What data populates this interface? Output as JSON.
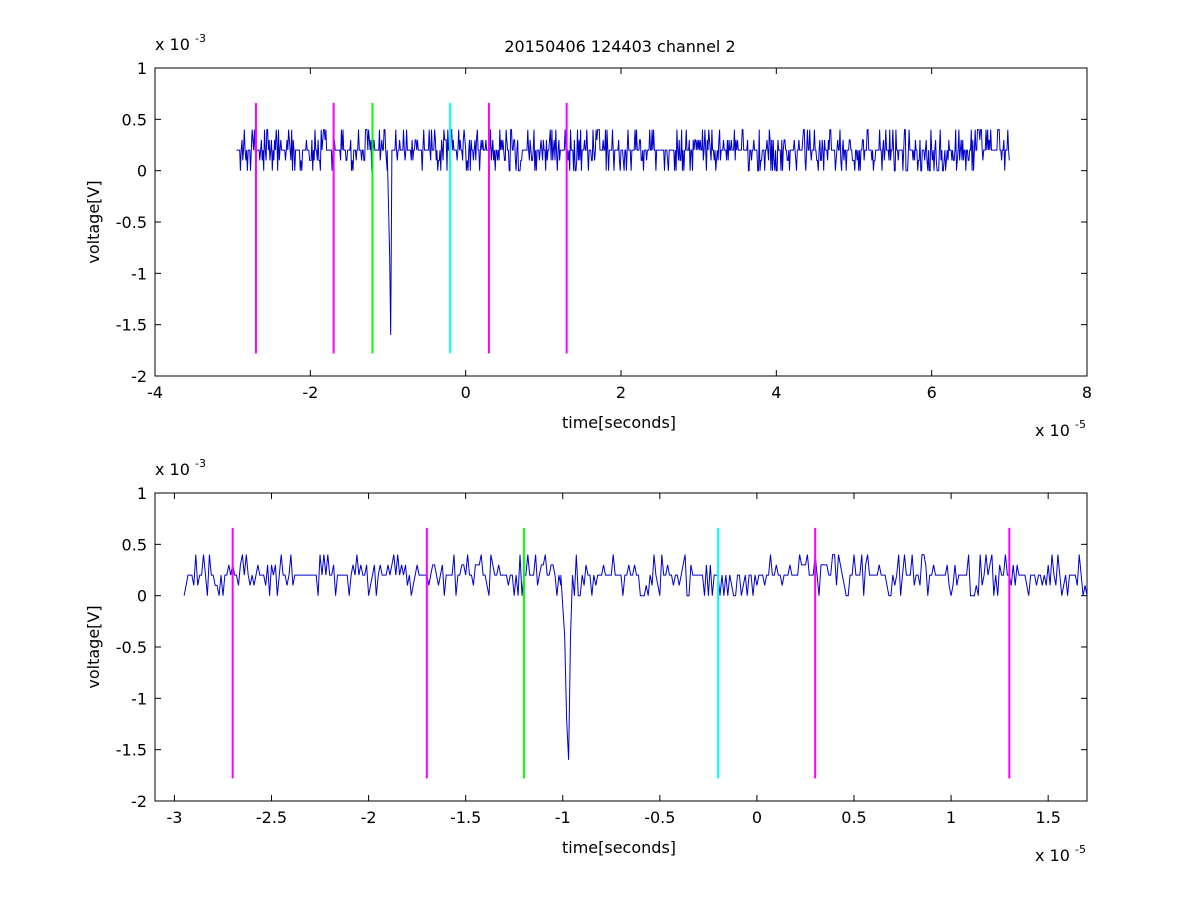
{
  "figure_title": "20150406 124403 channel 2",
  "chart_data": [
    {
      "type": "line",
      "title": "20150406 124403 channel 2",
      "xlabel": "time[seconds]",
      "ylabel": "voltage[V]",
      "x_exponent": "x 10",
      "x_exponent_power": "-5",
      "y_exponent": "x 10",
      "y_exponent_power": "-3",
      "xlim": [
        -4e-05,
        8e-05
      ],
      "ylim": [
        -0.002,
        0.001
      ],
      "xticks": [
        -4e-05,
        -2e-05,
        0,
        2e-05,
        4e-05,
        6e-05,
        8e-05
      ],
      "xtick_labels": [
        "-4",
        "-2",
        "0",
        "2",
        "4",
        "6",
        "8"
      ],
      "yticks": [
        -0.002,
        -0.0015,
        -0.001,
        -0.0005,
        0,
        0.0005,
        0.001
      ],
      "ytick_labels": [
        "-2",
        "-1.5",
        "-1",
        "-0.5",
        "0",
        "0.5",
        "1"
      ],
      "grid": false,
      "series": [
        {
          "color": "#0000cc",
          "style": "noise",
          "x_range": [
            -2.95e-05,
            7e-05
          ],
          "dt": 1e-07,
          "baseline": 0.0002,
          "levels": [
            0,
            0.0001,
            0.0002,
            0.0003,
            0.0004
          ],
          "spike": {
            "x": [
              -1.01e-05,
              -9.8e-06,
              -9.65e-06,
              -9.5e-06
            ],
            "y": [
              0.0002,
              -0.0008,
              -0.0016,
              0.0002
            ]
          }
        }
      ],
      "markers": [
        {
          "x": -2.7e-05,
          "color": "#ff00ff",
          "ymin": -0.00178,
          "ymax": 0.00066
        },
        {
          "x": -1.7e-05,
          "color": "#ff00ff",
          "ymin": -0.00178,
          "ymax": 0.00066
        },
        {
          "x": -1.2e-05,
          "color": "#00ff00",
          "ymin": -0.00178,
          "ymax": 0.00066
        },
        {
          "x": -2e-06,
          "color": "#00ffff",
          "ymin": -0.00178,
          "ymax": 0.00066
        },
        {
          "x": 3e-06,
          "color": "#ff00ff",
          "ymin": -0.00178,
          "ymax": 0.00066
        },
        {
          "x": 1.3e-05,
          "color": "#ff00ff",
          "ymin": -0.00178,
          "ymax": 0.00066
        }
      ]
    },
    {
      "type": "line",
      "title": "",
      "xlabel": "time[seconds]",
      "ylabel": "voltage[V]",
      "x_exponent": "x 10",
      "x_exponent_power": "-5",
      "y_exponent": "x 10",
      "y_exponent_power": "-3",
      "xlim": [
        -3.1e-05,
        1.7e-05
      ],
      "ylim": [
        -0.002,
        0.001
      ],
      "xticks": [
        -3e-05,
        -2.5e-05,
        -2e-05,
        -1.5e-05,
        -1e-05,
        -5e-06,
        0,
        5e-06,
        1e-05,
        1.5e-05
      ],
      "xtick_labels": [
        "-3",
        "-2.5",
        "-2",
        "-1.5",
        "-1",
        "-0.5",
        "0",
        "0.5",
        "1",
        "1.5"
      ],
      "yticks": [
        -0.002,
        -0.0015,
        -0.001,
        -0.0005,
        0,
        0.0005,
        0.001
      ],
      "ytick_labels": [
        "-2",
        "-1.5",
        "-1",
        "-0.5",
        "0",
        "0.5",
        "1"
      ],
      "grid": false,
      "series": [
        {
          "color": "#0000cc",
          "style": "noise",
          "x_range": [
            -2.95e-05,
            1.7e-05
          ],
          "dt": 1e-07,
          "baseline": 0.0002,
          "levels": [
            0,
            0.0001,
            0.0002,
            0.0003,
            0.0004
          ],
          "spike": {
            "x": [
              -1.01e-05,
              -9.9e-06,
              -9.8e-06,
              -9.7e-06,
              -9.6e-06,
              -9.5e-06
            ],
            "y": [
              0.0002,
              -0.0004,
              -0.0012,
              -0.0016,
              -0.0004,
              0.0002
            ]
          }
        }
      ],
      "markers": [
        {
          "x": -2.7e-05,
          "color": "#ff00ff",
          "ymin": -0.00178,
          "ymax": 0.00066
        },
        {
          "x": -1.7e-05,
          "color": "#ff00ff",
          "ymin": -0.00178,
          "ymax": 0.00066
        },
        {
          "x": -1.2e-05,
          "color": "#00ff00",
          "ymin": -0.00178,
          "ymax": 0.00066
        },
        {
          "x": -2e-06,
          "color": "#00ffff",
          "ymin": -0.00178,
          "ymax": 0.00066
        },
        {
          "x": 3e-06,
          "color": "#ff00ff",
          "ymin": -0.00178,
          "ymax": 0.00066
        },
        {
          "x": 1.3e-05,
          "color": "#ff00ff",
          "ymin": -0.00178,
          "ymax": 0.00066
        }
      ]
    }
  ]
}
